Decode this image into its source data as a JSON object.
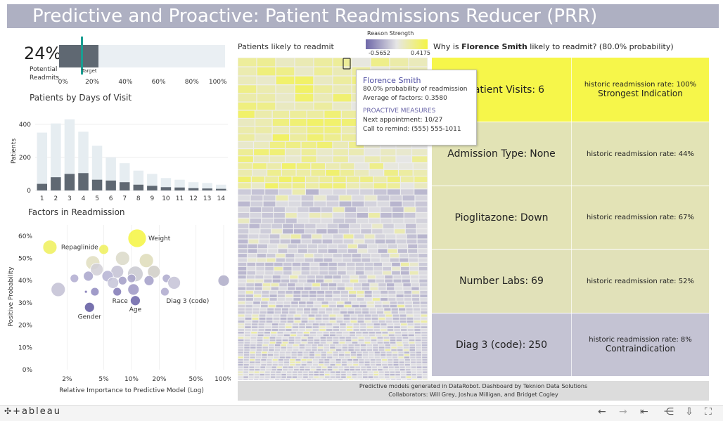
{
  "title": "Predictive and Proactive: Patient Readmissions Reducer (PRR)",
  "kpi": {
    "value": "24%",
    "label_line1": "Potential",
    "label_line2": "Readmits",
    "target_label": "Target",
    "fill_fraction": 0.24,
    "target_fraction": 0.13,
    "ticks": [
      "0%",
      "20%",
      "40%",
      "60%",
      "80%",
      "100%"
    ]
  },
  "days_chart_title": "Patients by Days of Visit",
  "factors_chart_title": "Factors in Readmission",
  "treemap_title": "Patients likely to readmit",
  "legend": {
    "title": "Reason Strength",
    "min": "-0.5652",
    "max": "0.4175"
  },
  "why": {
    "prefix": "Why is",
    "name": "Florence Smith",
    "suffix": "likely to readmit? (80.0%  probability)"
  },
  "tooltip": {
    "name": "Florence Smith",
    "line1": "80.0% probability of readmission",
    "line2": "Average of factors: 0.3580",
    "section": "PROACTIVE MEASURES",
    "line3": "Next appointment: 10/27",
    "line4": "Call to remind: (555) 555-1011"
  },
  "reasons": [
    {
      "label": "Inpatient Visits:",
      "value": "6",
      "rate": "historic readmission rate: 100%",
      "note": "Strongest Indication",
      "color": "#f6f64a"
    },
    {
      "label": "Admission Type:",
      "value": "None",
      "rate": "historic readmission rate: 44%",
      "note": "",
      "color": "#e2e3b5"
    },
    {
      "label": "Pioglitazone:",
      "value": "Down",
      "rate": "historic readmission rate: 67%",
      "note": "",
      "color": "#e3e3b6"
    },
    {
      "label": "Number Labs:",
      "value": "69",
      "rate": "historic readmission rate: 52%",
      "note": "",
      "color": "#e1e1b9"
    },
    {
      "label": "Diag 3 (code):",
      "value": "250",
      "rate": "historic readmission rate: 8%",
      "note": "Contraindication",
      "color": "#c4c3d3"
    }
  ],
  "credits": {
    "line1": "Predictive models generated in DataRobot. Dashboard by Teknion Data Solutions",
    "line2": "Collaborators: Will Grey, Joshua Milligan, and Bridget Cogley"
  },
  "footer": {
    "logo": "+ableau"
  },
  "chart_data": [
    {
      "type": "bar",
      "title": "Patients by Days of Visit",
      "ylabel": "Patients",
      "xlabel": "",
      "categories": [
        "1",
        "2",
        "3",
        "4",
        "5",
        "6",
        "7",
        "8",
        "9",
        "10",
        "11",
        "12",
        "13",
        "14"
      ],
      "ylim": [
        0,
        480
      ],
      "yticks": [
        0,
        200,
        400
      ],
      "series": [
        {
          "values": [
            350,
            405,
            430,
            355,
            270,
            200,
            165,
            120,
            100,
            75,
            65,
            50,
            45,
            35
          ],
          "color": "#e6edf1"
        },
        {
          "values": [
            40,
            80,
            100,
            105,
            65,
            60,
            50,
            35,
            28,
            20,
            18,
            14,
            12,
            10
          ],
          "color": "#5f6872"
        }
      ]
    },
    {
      "type": "scatter",
      "title": "Factors in Readmission",
      "xlabel": "Relative Importance to Predictive Model (Log)",
      "ylabel": "Positive Probability",
      "xscale": "log",
      "xlim": [
        1,
        100
      ],
      "ylim": [
        0,
        65
      ],
      "xticks": [
        "2%",
        "5%",
        "10%",
        "20%",
        "50%",
        "100%"
      ],
      "yticks": [
        "0%",
        "10%",
        "20%",
        "30%",
        "40%",
        "50%",
        "60%"
      ],
      "points": [
        {
          "x": 1.3,
          "y": 55,
          "r": 10,
          "color": "#eef05a",
          "label": "Repaglinide"
        },
        {
          "x": 5.0,
          "y": 54,
          "r": 7,
          "color": "#eef05a",
          "label": ""
        },
        {
          "x": 11.5,
          "y": 59,
          "r": 13,
          "color": "#f5f540",
          "label": "Weight"
        },
        {
          "x": 3.8,
          "y": 48,
          "r": 10,
          "color": "#e0dec0",
          "label": ""
        },
        {
          "x": 8.0,
          "y": 50,
          "r": 10,
          "color": "#dad9c8",
          "label": ""
        },
        {
          "x": 14.5,
          "y": 49,
          "r": 10,
          "color": "#dedcb8",
          "label": ""
        },
        {
          "x": 4.2,
          "y": 45,
          "r": 9,
          "color": "#d1cfd6",
          "label": ""
        },
        {
          "x": 7.0,
          "y": 44,
          "r": 9,
          "color": "#c3c1d3",
          "label": ""
        },
        {
          "x": 11.0,
          "y": 43,
          "r": 11,
          "color": "#c9c9d0",
          "label": ""
        },
        {
          "x": 17.5,
          "y": 44,
          "r": 9,
          "color": "#cfcdc6",
          "label": ""
        },
        {
          "x": 2.4,
          "y": 41,
          "r": 6,
          "color": "#b0acd0",
          "label": ""
        },
        {
          "x": 3.4,
          "y": 42,
          "r": 7,
          "color": "#a8a4cb",
          "label": ""
        },
        {
          "x": 5.5,
          "y": 42,
          "r": 8,
          "color": "#b4b1d2",
          "label": ""
        },
        {
          "x": 6.3,
          "y": 39,
          "r": 8,
          "color": "#c6c4d8",
          "label": ""
        },
        {
          "x": 8.0,
          "y": 40,
          "r": 6,
          "color": "#a19cc6",
          "label": ""
        },
        {
          "x": 10.0,
          "y": 41,
          "r": 6,
          "color": "#a7a2c9",
          "label": ""
        },
        {
          "x": 15.5,
          "y": 40,
          "r": 7,
          "color": "#a29ec8",
          "label": ""
        },
        {
          "x": 24.0,
          "y": 41,
          "r": 6,
          "color": "#ada9cd",
          "label": ""
        },
        {
          "x": 29.0,
          "y": 39,
          "r": 9,
          "color": "#c4c2d6",
          "label": ""
        },
        {
          "x": 1.6,
          "y": 36,
          "r": 10,
          "color": "#c2c0d3",
          "label": ""
        },
        {
          "x": 3.2,
          "y": 35,
          "r": 2,
          "color": "#7a72b2",
          "label": ""
        },
        {
          "x": 4.0,
          "y": 35,
          "r": 6,
          "color": "#8f89bf",
          "label": ""
        },
        {
          "x": 7.0,
          "y": 35,
          "r": 6,
          "color": "#7f78b5",
          "label": "Race"
        },
        {
          "x": 10.5,
          "y": 36,
          "r": 8,
          "color": "#9c97c4",
          "label": ""
        },
        {
          "x": 23.0,
          "y": 35,
          "r": 6,
          "color": "#aea9ce",
          "label": "Diag 3 (code)"
        },
        {
          "x": 11.0,
          "y": 31,
          "r": 7,
          "color": "#6a63a8",
          "label": "Age"
        },
        {
          "x": 3.5,
          "y": 28,
          "r": 7,
          "color": "#5f58a0",
          "label": "Gender"
        },
        {
          "x": 100,
          "y": 40,
          "r": 8,
          "color": "#aeacc8",
          "label": ""
        }
      ]
    },
    {
      "type": "heatmap",
      "title": "Patients likely to readmit",
      "color_scale": {
        "min": -0.5652,
        "max": 0.4175,
        "low_color": "#6e67a8",
        "mid_color": "#e6e6e6",
        "high_color": "#f4f445"
      }
    }
  ]
}
